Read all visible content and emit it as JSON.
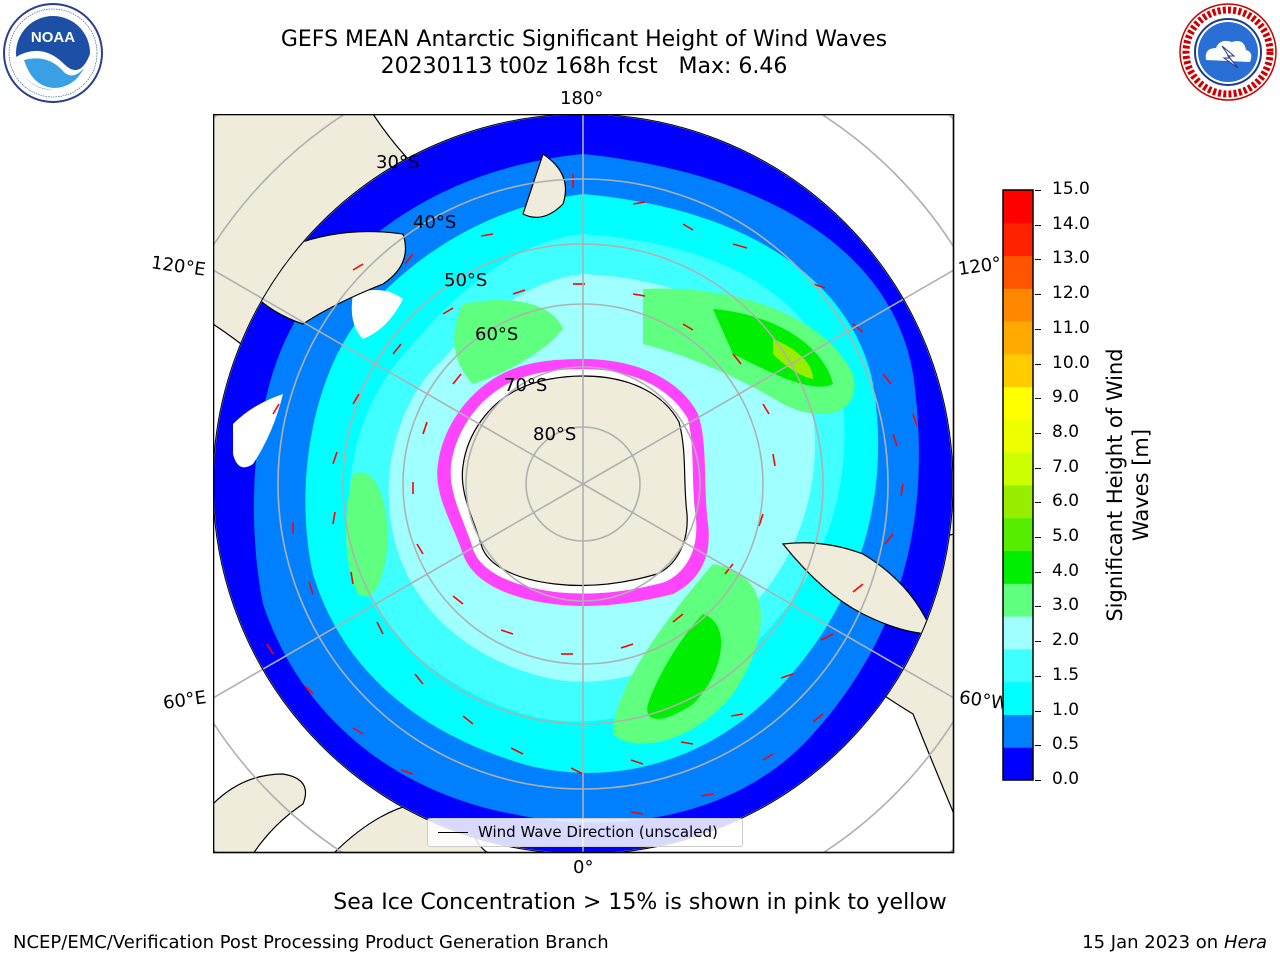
{
  "title": {
    "line1": "GEFS MEAN Antarctic Significant Height of Wind Waves",
    "line2": "20230113 t00z 168h fcst   Max: 6.46"
  },
  "logos": {
    "left": {
      "name": "NOAA",
      "ring_text": "NATIONAL OCEANIC AND ATMOSPHERIC ADMINISTRATION · U.S. DEPARTMENT OF COMMERCE"
    },
    "right": {
      "name": "NATIONAL WEATHER SERVICE"
    }
  },
  "map": {
    "projection": "south polar stereographic",
    "longitude_labels": {
      "top": "180°",
      "bottom": "0°",
      "upper_left": "120°E",
      "upper_right": "120°W",
      "lower_left": "60°E",
      "lower_right": "60°W"
    },
    "latitude_labels": [
      "30°S",
      "40°S",
      "50°S",
      "60°S",
      "70°S",
      "80°S"
    ],
    "colors": {
      "land": "#efecdc",
      "sea_ice": "#ff44ff",
      "arrow": "#ff0000",
      "gridline": "#b0b0b0"
    },
    "legend": {
      "text": "Wind Wave Direction (unscaled)"
    }
  },
  "colorbar": {
    "label": "Significant Height of Wind Waves [m]",
    "ticks": [
      "0.0",
      "0.5",
      "1.0",
      "1.5",
      "2.0",
      "3.0",
      "4.0",
      "5.0",
      "6.0",
      "7.0",
      "8.0",
      "9.0",
      "10.0",
      "11.0",
      "12.0",
      "13.0",
      "14.0",
      "15.0"
    ],
    "colors": [
      "#0000ff",
      "#0080ff",
      "#00ffff",
      "#40ffff",
      "#a0ffff",
      "#5fff7f",
      "#00ee00",
      "#55ee00",
      "#99ee00",
      "#ccff00",
      "#eeff00",
      "#ffff00",
      "#ffcc00",
      "#ffaa00",
      "#ff8800",
      "#ff5500",
      "#ff2200",
      "#ff0000"
    ]
  },
  "caption": "Sea Ice Concentration > 15% is shown in pink to yellow",
  "footer": {
    "left": "NCEP/EMC/Verification Post Processing Product Generation Branch",
    "right_prefix": "15 Jan 2023 on ",
    "right_machine": "Hera"
  }
}
